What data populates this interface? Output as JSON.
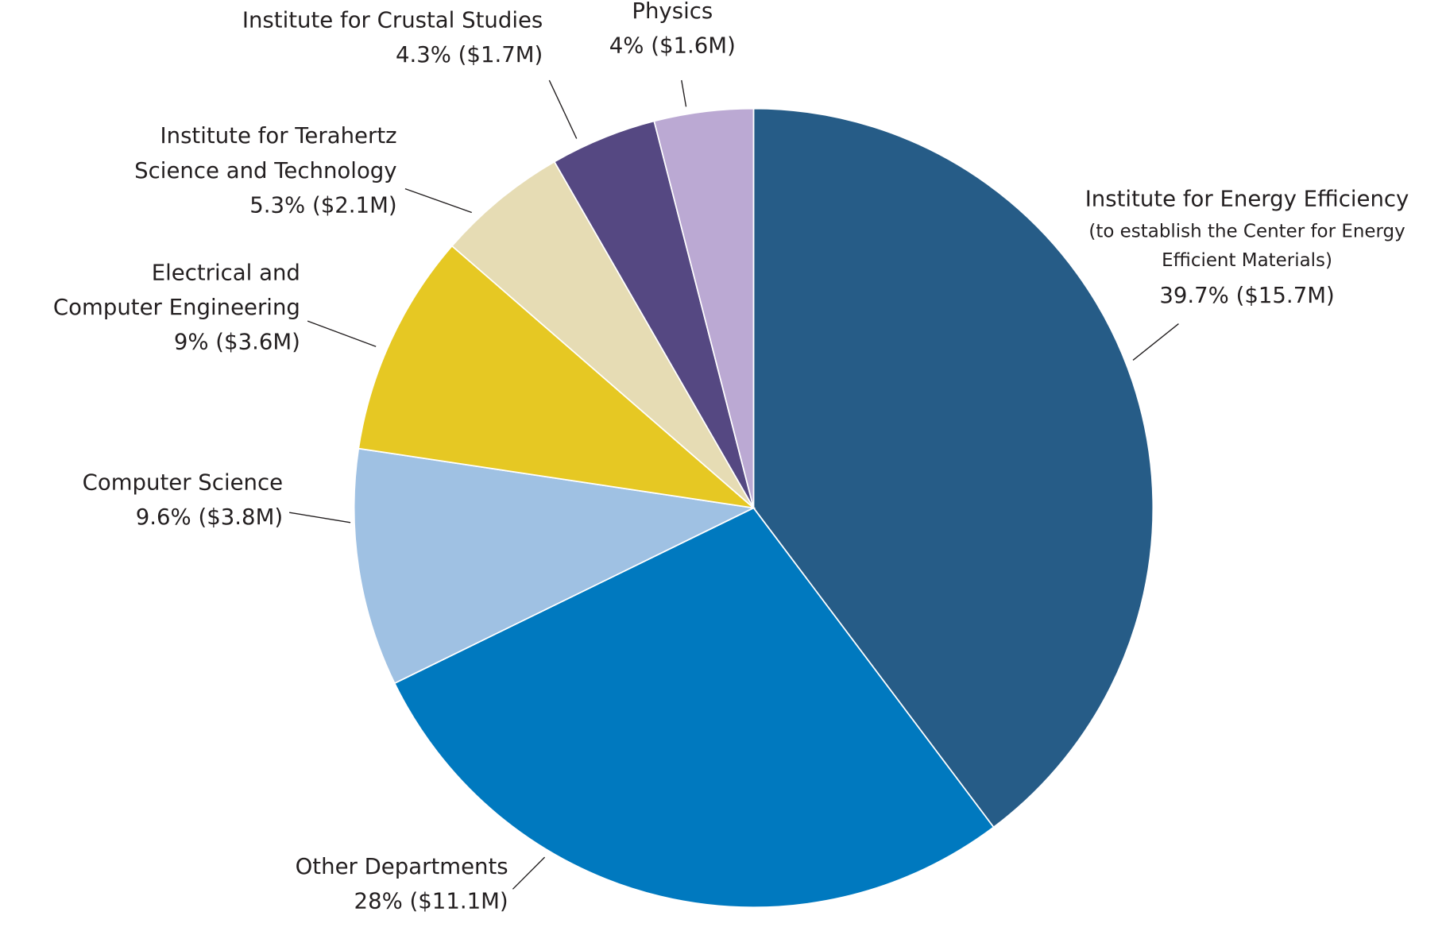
{
  "chart_data": {
    "type": "pie",
    "categories": [
      "Institute for Energy Efficiency",
      "Other Departments",
      "Computer Science",
      "Electrical and Computer Engineering",
      "Institute for Terahertz Science and Technology",
      "Institute for Crustal Studies",
      "Physics"
    ],
    "notes": [
      "(to establish the Center for Energy Efficient Materials)",
      null,
      null,
      null,
      null,
      null,
      null
    ],
    "values": [
      39.7,
      28,
      9.6,
      9,
      5.3,
      4.3,
      4
    ],
    "value_labels": [
      "39.7% ($15.7M)",
      "28% ($11.1M)",
      "9.6% ($3.8M)",
      "9% ($3.6M)",
      "5.3% ($2.1M)",
      "4.3% ($1.7M)",
      "4% ($1.6M)"
    ],
    "colors": [
      "#265c87",
      "#0079bf",
      "#9fc1e3",
      "#e6c823",
      "#e6dcb4",
      "#554882",
      "#bba9d3"
    ]
  }
}
